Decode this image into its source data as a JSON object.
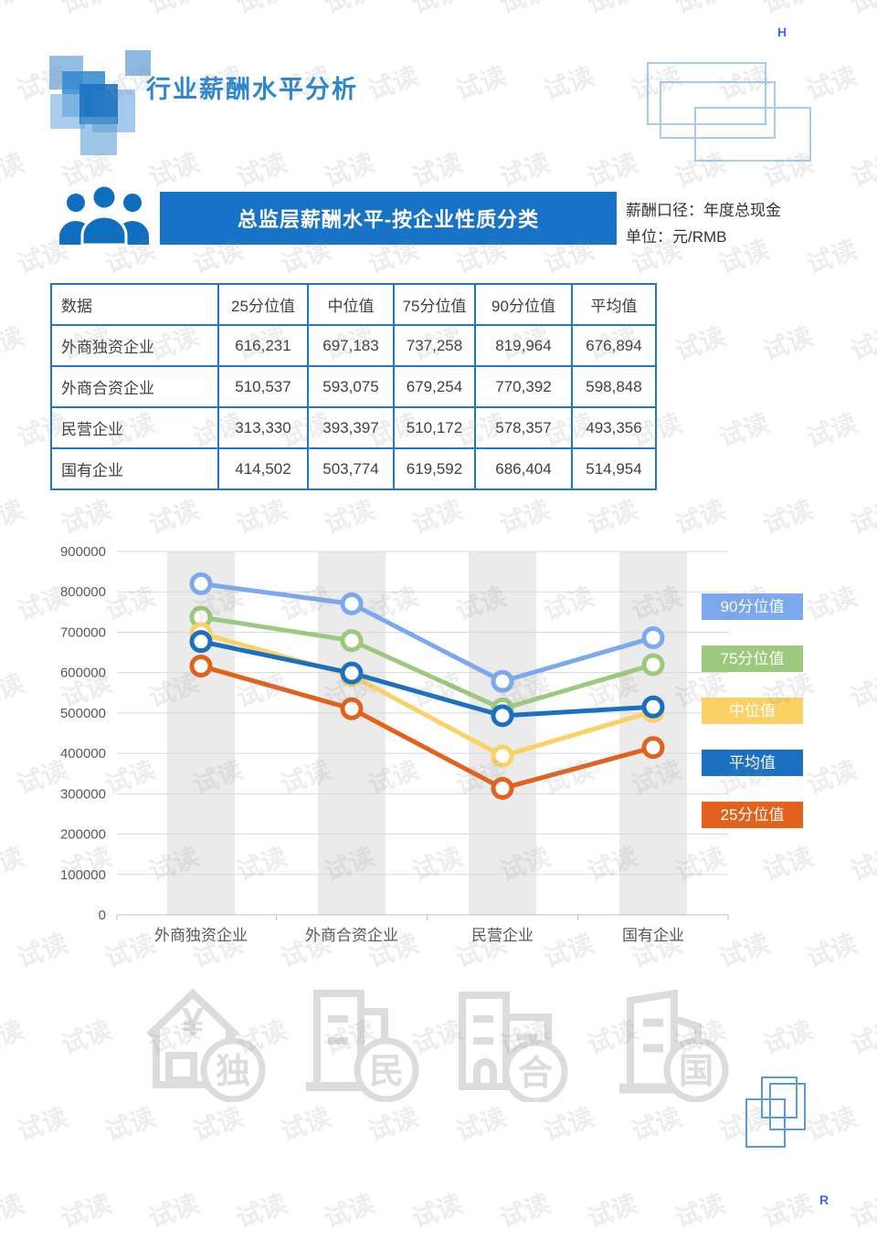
{
  "page": {
    "watermark": "试读",
    "corner_top_letter": "H",
    "corner_bottom_letter": "R"
  },
  "header": {
    "title": "行业薪酬水平分析"
  },
  "section": {
    "banner": "总监层薪酬水平-按企业性质分类",
    "caption_line1": "薪酬口径：年度总现金",
    "caption_line2": "单位：元/RMB"
  },
  "table": {
    "headers": [
      "数据",
      "25分位值",
      "中位值",
      "75分位值",
      "90分位值",
      "平均值"
    ],
    "rows": [
      {
        "label": "外商独资企业",
        "values": [
          "616,231",
          "697,183",
          "737,258",
          "819,964",
          "676,894"
        ]
      },
      {
        "label": "外商合资企业",
        "values": [
          "510,537",
          "593,075",
          "679,254",
          "770,392",
          "598,848"
        ]
      },
      {
        "label": "民营企业",
        "values": [
          "313,330",
          "393,397",
          "510,172",
          "578,357",
          "493,356"
        ]
      },
      {
        "label": "国有企业",
        "values": [
          "414,502",
          "503,774",
          "619,592",
          "686,404",
          "514,954"
        ]
      }
    ]
  },
  "chart_data": {
    "type": "line",
    "categories": [
      "外商独资企业",
      "外商合资企业",
      "民营企业",
      "国有企业"
    ],
    "series": [
      {
        "name": "90分位值",
        "color": "#7CA9ED",
        "values": [
          819964,
          770392,
          578357,
          686404
        ]
      },
      {
        "name": "75分位值",
        "color": "#9CC97E",
        "values": [
          737258,
          679254,
          510172,
          619592
        ]
      },
      {
        "name": "中位值",
        "color": "#FBD064",
        "values": [
          697183,
          593075,
          393397,
          503774
        ]
      },
      {
        "name": "平均值",
        "color": "#1B6FC0",
        "values": [
          676894,
          598848,
          493356,
          514954
        ]
      },
      {
        "name": "25分位值",
        "color": "#E2621D",
        "values": [
          616231,
          510537,
          313330,
          414502
        ]
      }
    ],
    "ylim": [
      0,
      900000
    ],
    "ytick_step": 100000,
    "ytick_labels": [
      "0",
      "100000",
      "200000",
      "300000",
      "400000",
      "500000",
      "600000",
      "700000",
      "800000",
      "900000"
    ],
    "legend_position": "right",
    "grid": true,
    "plot_band_color": "#EBEBEB"
  },
  "icons": {
    "house_symbol": "¥",
    "items": [
      {
        "badge": "独"
      },
      {
        "badge": "民"
      },
      {
        "badge": "合"
      },
      {
        "badge": "国"
      }
    ]
  },
  "colors": {
    "banner_blue": "#1873C6",
    "title_blue": "#2E86CC",
    "table_border_blue": "#2176C7",
    "icon_gray": "#DCDCDC"
  }
}
